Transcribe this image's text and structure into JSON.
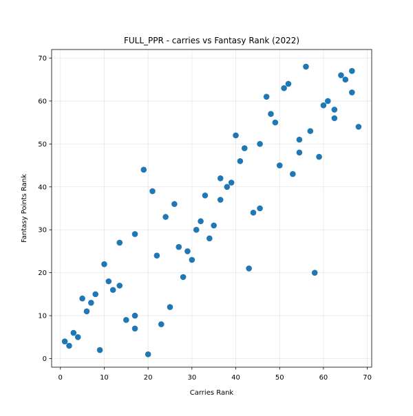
{
  "chart_data": {
    "type": "scatter",
    "title": "FULL_PPR - carries vs Fantasy Rank (2022)",
    "xlabel": "Carries Rank",
    "ylabel": "Fantasy Points Rank",
    "xlim": [
      -2,
      71
    ],
    "ylim": [
      -2,
      72
    ],
    "xticks": [
      0,
      10,
      20,
      30,
      40,
      50,
      60,
      70
    ],
    "yticks": [
      0,
      10,
      20,
      30,
      40,
      50,
      60,
      70
    ],
    "grid": true,
    "marker_color": "#1f77b4",
    "points": [
      [
        1,
        4
      ],
      [
        2,
        3
      ],
      [
        3,
        6
      ],
      [
        4,
        5
      ],
      [
        5,
        14
      ],
      [
        6,
        11
      ],
      [
        7,
        13
      ],
      [
        8,
        15
      ],
      [
        9,
        2
      ],
      [
        10,
        22
      ],
      [
        11,
        18
      ],
      [
        12,
        16
      ],
      [
        13.5,
        27
      ],
      [
        13.5,
        17
      ],
      [
        15,
        9
      ],
      [
        17,
        29
      ],
      [
        17,
        10
      ],
      [
        17,
        7
      ],
      [
        19,
        44
      ],
      [
        20,
        1
      ],
      [
        21,
        39
      ],
      [
        22,
        24
      ],
      [
        23,
        8
      ],
      [
        24,
        33
      ],
      [
        25,
        12
      ],
      [
        26,
        36
      ],
      [
        27,
        26
      ],
      [
        28,
        19
      ],
      [
        29,
        25
      ],
      [
        30,
        23
      ],
      [
        31,
        30
      ],
      [
        32,
        32
      ],
      [
        33,
        38
      ],
      [
        34,
        28
      ],
      [
        35,
        31
      ],
      [
        36.5,
        42
      ],
      [
        36.5,
        37
      ],
      [
        38,
        40
      ],
      [
        39,
        41
      ],
      [
        40,
        52
      ],
      [
        41,
        46
      ],
      [
        42,
        49
      ],
      [
        43,
        21
      ],
      [
        44,
        34
      ],
      [
        45.5,
        50
      ],
      [
        45.5,
        35
      ],
      [
        47,
        61
      ],
      [
        48,
        57
      ],
      [
        49,
        55
      ],
      [
        50,
        45
      ],
      [
        51,
        63
      ],
      [
        52,
        64
      ],
      [
        53,
        43
      ],
      [
        54.5,
        51
      ],
      [
        54.5,
        48
      ],
      [
        56,
        68
      ],
      [
        57,
        53
      ],
      [
        58,
        20
      ],
      [
        59,
        47
      ],
      [
        60,
        59
      ],
      [
        61,
        60
      ],
      [
        62.5,
        58
      ],
      [
        62.5,
        56
      ],
      [
        64,
        66
      ],
      [
        65,
        65
      ],
      [
        66.5,
        67
      ],
      [
        66.5,
        62
      ],
      [
        68,
        54
      ]
    ]
  }
}
